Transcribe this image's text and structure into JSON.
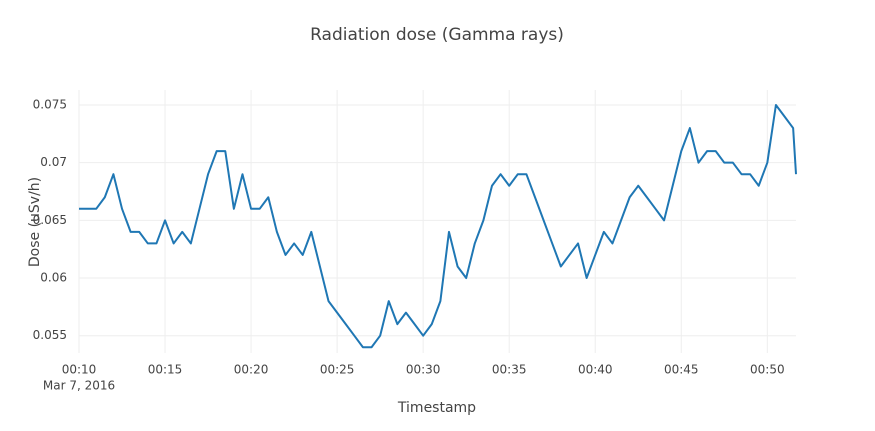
{
  "chart_data": {
    "type": "line",
    "title": "Radiation dose (Gamma rays)",
    "x_label": "Timestamp",
    "y_label": "Dose (uSv/h)",
    "x": [
      "2016-03-07 00:10:00",
      "2016-03-07 00:10:30",
      "2016-03-07 00:11:00",
      "2016-03-07 00:11:30",
      "2016-03-07 00:12:00",
      "2016-03-07 00:12:30",
      "2016-03-07 00:13:00",
      "2016-03-07 00:13:30",
      "2016-03-07 00:14:00",
      "2016-03-07 00:14:30",
      "2016-03-07 00:15:00",
      "2016-03-07 00:15:30",
      "2016-03-07 00:16:00",
      "2016-03-07 00:16:30",
      "2016-03-07 00:17:00",
      "2016-03-07 00:17:30",
      "2016-03-07 00:18:00",
      "2016-03-07 00:18:30",
      "2016-03-07 00:19:00",
      "2016-03-07 00:19:30",
      "2016-03-07 00:20:00",
      "2016-03-07 00:20:30",
      "2016-03-07 00:21:00",
      "2016-03-07 00:21:30",
      "2016-03-07 00:22:00",
      "2016-03-07 00:22:30",
      "2016-03-07 00:23:00",
      "2016-03-07 00:23:30",
      "2016-03-07 00:24:00",
      "2016-03-07 00:24:30",
      "2016-03-07 00:25:00",
      "2016-03-07 00:25:30",
      "2016-03-07 00:26:00",
      "2016-03-07 00:26:30",
      "2016-03-07 00:27:00",
      "2016-03-07 00:27:30",
      "2016-03-07 00:28:00",
      "2016-03-07 00:28:30",
      "2016-03-07 00:29:00",
      "2016-03-07 00:29:30",
      "2016-03-07 00:30:00",
      "2016-03-07 00:30:30",
      "2016-03-07 00:31:00",
      "2016-03-07 00:31:30",
      "2016-03-07 00:32:00",
      "2016-03-07 00:32:30",
      "2016-03-07 00:33:00",
      "2016-03-07 00:33:30",
      "2016-03-07 00:34:00",
      "2016-03-07 00:34:30",
      "2016-03-07 00:35:00",
      "2016-03-07 00:35:30",
      "2016-03-07 00:36:00",
      "2016-03-07 00:36:30",
      "2016-03-07 00:37:00",
      "2016-03-07 00:37:30",
      "2016-03-07 00:38:00",
      "2016-03-07 00:38:30",
      "2016-03-07 00:39:00",
      "2016-03-07 00:39:30",
      "2016-03-07 00:40:00",
      "2016-03-07 00:40:30",
      "2016-03-07 00:41:00",
      "2016-03-07 00:41:30",
      "2016-03-07 00:42:00",
      "2016-03-07 00:42:30",
      "2016-03-07 00:43:00",
      "2016-03-07 00:43:30",
      "2016-03-07 00:44:00",
      "2016-03-07 00:44:30",
      "2016-03-07 00:45:00",
      "2016-03-07 00:45:30",
      "2016-03-07 00:46:00",
      "2016-03-07 00:46:30",
      "2016-03-07 00:47:00",
      "2016-03-07 00:47:30",
      "2016-03-07 00:48:00",
      "2016-03-07 00:48:30",
      "2016-03-07 00:49:00",
      "2016-03-07 00:49:30",
      "2016-03-07 00:50:00",
      "2016-03-07 00:50:30",
      "2016-03-07 00:51:00",
      "2016-03-07 00:51:30",
      "2016-03-07 00:51:40"
    ],
    "series": [
      {
        "color": "#1f77b4",
        "values": [
          0.066,
          0.066,
          0.066,
          0.067,
          0.069,
          0.066,
          0.064,
          0.064,
          0.063,
          0.063,
          0.065,
          0.063,
          0.064,
          0.063,
          0.066,
          0.069,
          0.071,
          0.071,
          0.066,
          0.069,
          0.066,
          0.066,
          0.067,
          0.064,
          0.062,
          0.063,
          0.062,
          0.064,
          0.061,
          0.058,
          0.057,
          0.056,
          0.055,
          0.054,
          0.054,
          0.055,
          0.058,
          0.056,
          0.057,
          0.056,
          0.055,
          0.056,
          0.058,
          0.064,
          0.061,
          0.06,
          0.063,
          0.065,
          0.068,
          0.069,
          0.068,
          0.069,
          0.069,
          0.067,
          0.065,
          0.063,
          0.061,
          0.062,
          0.063,
          0.06,
          0.062,
          0.064,
          0.063,
          0.065,
          0.067,
          0.068,
          0.067,
          0.066,
          0.065,
          0.068,
          0.071,
          0.073,
          0.07,
          0.071,
          0.071,
          0.07,
          0.07,
          0.069,
          0.069,
          0.068,
          0.07,
          0.075,
          0.074,
          0.073,
          0.069
        ]
      }
    ],
    "xlim": [
      "2016-03-07 00:10:00",
      "2016-03-07 00:51:40"
    ],
    "xticks": [
      {
        "value": "2016-03-07 00:10:00",
        "label": "00:10"
      },
      {
        "value": "2016-03-07 00:15:00",
        "label": "00:15"
      },
      {
        "value": "2016-03-07 00:20:00",
        "label": "00:20"
      },
      {
        "value": "2016-03-07 00:25:00",
        "label": "00:25"
      },
      {
        "value": "2016-03-07 00:30:00",
        "label": "00:30"
      },
      {
        "value": "2016-03-07 00:35:00",
        "label": "00:35"
      },
      {
        "value": "2016-03-07 00:40:00",
        "label": "00:40"
      },
      {
        "value": "2016-03-07 00:45:00",
        "label": "00:45"
      },
      {
        "value": "2016-03-07 00:50:00",
        "label": "00:50"
      }
    ],
    "xtick_date": "Mar 7, 2016",
    "ylim": [
      0.0535,
      0.0763
    ],
    "yticks": [
      0.055,
      0.06,
      0.065,
      0.07,
      0.075
    ],
    "grid": true
  }
}
